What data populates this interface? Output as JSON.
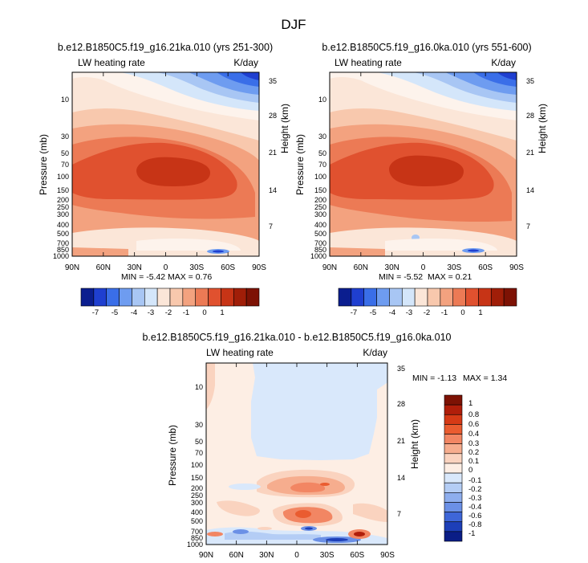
{
  "chart_data": [
    {
      "type": "heatmap",
      "title": "b.e12.B1850C5.f19_g16.21ka.010 (yrs 251-300)",
      "left_label": "LW heating rate",
      "right_label": "K/day",
      "xlabel": "",
      "ylabel": "Pressure (mb)",
      "ylabel_right": "Height (km)",
      "x_ticks": [
        "90N",
        "60N",
        "30N",
        "0",
        "30S",
        "60S",
        "90S"
      ],
      "x_range": [
        90,
        -90
      ],
      "y_ticks_pressure": [
        "10",
        "30",
        "50",
        "70",
        "100",
        "150",
        "200",
        "250",
        "300",
        "400",
        "500",
        "700",
        "850",
        "1000"
      ],
      "y_ticks_height": [
        "35",
        "28",
        "21",
        "14",
        "7"
      ],
      "y_range_mb": [
        3,
        1000
      ],
      "min_label": "MIN = -5.42",
      "max_label": "MAX = 0.76",
      "colorbar": {
        "orientation": "horizontal",
        "labels": [
          "-7",
          "-5",
          "-4",
          "-3",
          "-2",
          "-1",
          "0",
          "1"
        ]
      }
    },
    {
      "type": "heatmap",
      "title": "b.e12.B1850C5.f19_g16.0ka.010 (yrs 551-600)",
      "left_label": "LW heating rate",
      "right_label": "K/day",
      "xlabel": "",
      "ylabel": "Pressure (mb)",
      "ylabel_right": "Height (km)",
      "x_ticks": [
        "90N",
        "60N",
        "30N",
        "0",
        "30S",
        "60S",
        "90S"
      ],
      "x_range": [
        90,
        -90
      ],
      "y_ticks_pressure": [
        "10",
        "30",
        "50",
        "70",
        "100",
        "150",
        "200",
        "250",
        "300",
        "400",
        "500",
        "700",
        "850",
        "1000"
      ],
      "y_ticks_height": [
        "35",
        "28",
        "21",
        "14",
        "7"
      ],
      "y_range_mb": [
        3,
        1000
      ],
      "min_label": "MIN = -5.52",
      "max_label": "MAX = 0.21",
      "colorbar": {
        "orientation": "horizontal",
        "labels": [
          "-7",
          "-5",
          "-4",
          "-3",
          "-2",
          "-1",
          "0",
          "1"
        ]
      }
    },
    {
      "type": "heatmap",
      "title": "b.e12.B1850C5.f19_g16.21ka.010 - b.e12.B1850C5.f19_g16.0ka.010",
      "left_label": "LW heating rate",
      "right_label": "K/day",
      "xlabel": "",
      "ylabel": "Pressure (mb)",
      "ylabel_right": "Height (km)",
      "x_ticks": [
        "90N",
        "60N",
        "30N",
        "0",
        "30S",
        "60S",
        "90S"
      ],
      "x_range": [
        90,
        -90
      ],
      "y_ticks_pressure": [
        "10",
        "30",
        "50",
        "70",
        "100",
        "150",
        "200",
        "250",
        "300",
        "400",
        "500",
        "700",
        "850",
        "1000"
      ],
      "y_ticks_height": [
        "35",
        "28",
        "21",
        "14",
        "7"
      ],
      "y_range_mb": [
        3,
        1000
      ],
      "min_label": "MIN = -1.13",
      "max_label": "MAX = 1.34",
      "colorbar": {
        "orientation": "vertical",
        "labels": [
          "1",
          "0.8",
          "0.6",
          "0.4",
          "0.3",
          "0.2",
          "0.1",
          "0",
          "-0.1",
          "-0.2",
          "-0.3",
          "-0.4",
          "-0.6",
          "-0.8",
          "-1"
        ]
      }
    }
  ],
  "figure": {
    "title": "DJF"
  },
  "colors": {
    "abs_scale": [
      "#0b1e8f",
      "#1f3fd0",
      "#3a6ee8",
      "#6e9cf0",
      "#a8c6f4",
      "#d4e6fa",
      "#fbe6d8",
      "#f8c8ad",
      "#f3a27f",
      "#ec7a55",
      "#e0512f",
      "#c73416",
      "#a01e08",
      "#7d1204"
    ],
    "diff_scale": [
      "#7d1204",
      "#b01e0a",
      "#d63a16",
      "#ea5c30",
      "#f28663",
      "#f6ad8e",
      "#fad3bf",
      "#fdeee4",
      "#d9e8fb",
      "#b4cdf5",
      "#8eaeee",
      "#6b90e6",
      "#3e66d8",
      "#1d3fb8",
      "#0a1d86"
    ]
  }
}
